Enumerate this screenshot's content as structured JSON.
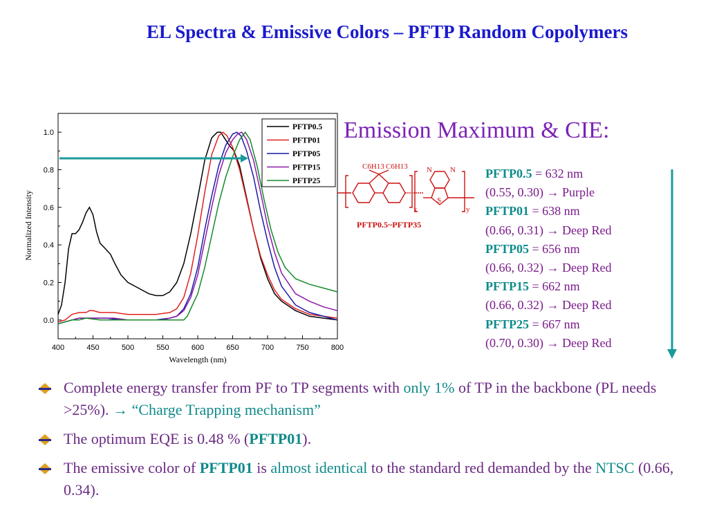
{
  "title": "EL Spectra & Emissive Colors – PFTP Random Copolymers",
  "emission_heading": "Emission Maximum & CIE:",
  "structure": {
    "label": "PFTP0.5~PFTP35",
    "substituents": [
      "C6H13",
      "C6H13"
    ],
    "atoms": [
      "N",
      "N",
      "S"
    ],
    "indices": [
      "x",
      "y"
    ]
  },
  "cie": [
    {
      "name": "PFTP0.5",
      "eq": " = 632 nm",
      "coords": "(0.55, 0.30) → Purple"
    },
    {
      "name": "PFTP01",
      "eq": " =  638 nm",
      "coords": "(0.66, 0.31) → Deep Red"
    },
    {
      "name": "PFTP05",
      "eq": " = 656 nm",
      "coords": "(0.66, 0.32) → Deep Red"
    },
    {
      "name": "PFTP15",
      "eq": " = 662 nm",
      "coords": "(0.66, 0.32) → Deep Red"
    },
    {
      "name": "PFTP25",
      "eq": " = 667 nm",
      "coords": "(0.70, 0.30) → Deep Red"
    }
  ],
  "bullets": {
    "b1": {
      "t1": "Complete energy transfer from PF to TP segments with ",
      "t2": "only 1%",
      "t3": " of TP in the backbone (PL needs >25%). ",
      "t4": "→ “Charge Trapping mechanism”"
    },
    "b2": {
      "t1": "The optimum EQE is 0.48 % (",
      "t2": "PFTP01",
      "t3": ")."
    },
    "b3": {
      "t1": "The emissive color of ",
      "t2": "PFTP01",
      "t3": " is ",
      "t4": "almost identical",
      "t5": " to the standard red demanded by the ",
      "t6": "NTSC",
      "t7": " (0.66, 0.34)."
    }
  },
  "chart_data": {
    "type": "line",
    "xlabel": "Wavelength (nm)",
    "ylabel": "Normalized Intensity",
    "xlim": [
      400,
      800
    ],
    "ylim": [
      -0.1,
      1.1
    ],
    "xticks": [
      400,
      450,
      500,
      550,
      600,
      650,
      700,
      750,
      800
    ],
    "yticks": [
      0.0,
      0.2,
      0.4,
      0.6,
      0.8,
      1.0
    ],
    "legend_position": "top-right",
    "grid": false,
    "series": [
      {
        "name": "PFTP0.5",
        "color": "#000000",
        "points": [
          [
            400,
            0.03
          ],
          [
            405,
            0.08
          ],
          [
            410,
            0.2
          ],
          [
            415,
            0.38
          ],
          [
            420,
            0.46
          ],
          [
            425,
            0.46
          ],
          [
            430,
            0.48
          ],
          [
            435,
            0.52
          ],
          [
            440,
            0.57
          ],
          [
            445,
            0.6
          ],
          [
            450,
            0.56
          ],
          [
            455,
            0.47
          ],
          [
            460,
            0.41
          ],
          [
            465,
            0.39
          ],
          [
            470,
            0.37
          ],
          [
            475,
            0.35
          ],
          [
            480,
            0.31
          ],
          [
            490,
            0.24
          ],
          [
            500,
            0.2
          ],
          [
            510,
            0.18
          ],
          [
            520,
            0.16
          ],
          [
            530,
            0.14
          ],
          [
            540,
            0.13
          ],
          [
            550,
            0.13
          ],
          [
            560,
            0.15
          ],
          [
            570,
            0.2
          ],
          [
            580,
            0.3
          ],
          [
            590,
            0.46
          ],
          [
            600,
            0.65
          ],
          [
            610,
            0.85
          ],
          [
            620,
            0.97
          ],
          [
            628,
            1.0
          ],
          [
            633,
            1.0
          ],
          [
            638,
            0.97
          ],
          [
            645,
            0.93
          ],
          [
            652,
            0.9
          ],
          [
            660,
            0.82
          ],
          [
            670,
            0.65
          ],
          [
            680,
            0.48
          ],
          [
            690,
            0.33
          ],
          [
            700,
            0.22
          ],
          [
            710,
            0.14
          ],
          [
            720,
            0.1
          ],
          [
            740,
            0.05
          ],
          [
            760,
            0.02
          ],
          [
            780,
            0.01
          ],
          [
            800,
            0.0
          ]
        ]
      },
      {
        "name": "PFTP01",
        "color": "#e02020",
        "points": [
          [
            400,
            -0.01
          ],
          [
            410,
            0.0
          ],
          [
            420,
            0.03
          ],
          [
            430,
            0.04
          ],
          [
            440,
            0.04
          ],
          [
            445,
            0.05
          ],
          [
            450,
            0.05
          ],
          [
            460,
            0.04
          ],
          [
            470,
            0.04
          ],
          [
            480,
            0.04
          ],
          [
            500,
            0.03
          ],
          [
            520,
            0.03
          ],
          [
            540,
            0.03
          ],
          [
            560,
            0.04
          ],
          [
            570,
            0.06
          ],
          [
            580,
            0.12
          ],
          [
            590,
            0.25
          ],
          [
            600,
            0.45
          ],
          [
            610,
            0.68
          ],
          [
            620,
            0.88
          ],
          [
            630,
            0.98
          ],
          [
            636,
            1.0
          ],
          [
            642,
            0.98
          ],
          [
            650,
            0.92
          ],
          [
            660,
            0.8
          ],
          [
            670,
            0.64
          ],
          [
            680,
            0.48
          ],
          [
            690,
            0.34
          ],
          [
            700,
            0.24
          ],
          [
            710,
            0.16
          ],
          [
            720,
            0.11
          ],
          [
            740,
            0.06
          ],
          [
            760,
            0.03
          ],
          [
            780,
            0.02
          ],
          [
            800,
            0.01
          ]
        ]
      },
      {
        "name": "PFTP05",
        "color": "#1a1aa8",
        "points": [
          [
            400,
            -0.02
          ],
          [
            420,
            0.0
          ],
          [
            430,
            0.01
          ],
          [
            440,
            0.01
          ],
          [
            450,
            0.01
          ],
          [
            470,
            0.01
          ],
          [
            490,
            0.0
          ],
          [
            510,
            0.0
          ],
          [
            540,
            0.0
          ],
          [
            560,
            0.01
          ],
          [
            570,
            0.02
          ],
          [
            580,
            0.06
          ],
          [
            590,
            0.14
          ],
          [
            600,
            0.28
          ],
          [
            610,
            0.48
          ],
          [
            620,
            0.66
          ],
          [
            630,
            0.82
          ],
          [
            640,
            0.93
          ],
          [
            650,
            0.99
          ],
          [
            656,
            1.0
          ],
          [
            662,
            0.98
          ],
          [
            670,
            0.9
          ],
          [
            680,
            0.76
          ],
          [
            690,
            0.58
          ],
          [
            700,
            0.42
          ],
          [
            710,
            0.28
          ],
          [
            720,
            0.18
          ],
          [
            740,
            0.08
          ],
          [
            760,
            0.04
          ],
          [
            780,
            0.02
          ],
          [
            800,
            0.0
          ]
        ]
      },
      {
        "name": "PFTP15",
        "color": "#8a1aa8",
        "points": [
          [
            400,
            -0.02
          ],
          [
            420,
            0.0
          ],
          [
            430,
            0.01
          ],
          [
            440,
            0.01
          ],
          [
            460,
            0.01
          ],
          [
            480,
            0.01
          ],
          [
            500,
            0.0
          ],
          [
            520,
            0.0
          ],
          [
            550,
            0.0
          ],
          [
            570,
            0.02
          ],
          [
            580,
            0.05
          ],
          [
            590,
            0.12
          ],
          [
            600,
            0.24
          ],
          [
            610,
            0.42
          ],
          [
            620,
            0.6
          ],
          [
            630,
            0.77
          ],
          [
            640,
            0.89
          ],
          [
            650,
            0.96
          ],
          [
            657,
            0.99
          ],
          [
            663,
            1.0
          ],
          [
            670,
            0.96
          ],
          [
            680,
            0.85
          ],
          [
            690,
            0.68
          ],
          [
            700,
            0.5
          ],
          [
            710,
            0.36
          ],
          [
            720,
            0.25
          ],
          [
            740,
            0.14
          ],
          [
            760,
            0.1
          ],
          [
            780,
            0.07
          ],
          [
            800,
            0.05
          ]
        ]
      },
      {
        "name": "PFTP25",
        "color": "#158a2a",
        "points": [
          [
            400,
            -0.02
          ],
          [
            420,
            0.0
          ],
          [
            430,
            0.0
          ],
          [
            440,
            0.01
          ],
          [
            460,
            0.0
          ],
          [
            480,
            0.0
          ],
          [
            500,
            0.0
          ],
          [
            540,
            0.0
          ],
          [
            570,
            0.0
          ],
          [
            580,
            0.0
          ],
          [
            585,
            0.02
          ],
          [
            590,
            0.06
          ],
          [
            600,
            0.14
          ],
          [
            610,
            0.28
          ],
          [
            620,
            0.45
          ],
          [
            630,
            0.62
          ],
          [
            640,
            0.76
          ],
          [
            650,
            0.87
          ],
          [
            660,
            0.96
          ],
          [
            668,
            1.0
          ],
          [
            675,
            0.96
          ],
          [
            685,
            0.82
          ],
          [
            695,
            0.64
          ],
          [
            705,
            0.48
          ],
          [
            715,
            0.36
          ],
          [
            725,
            0.28
          ],
          [
            740,
            0.22
          ],
          [
            760,
            0.19
          ],
          [
            780,
            0.17
          ],
          [
            800,
            0.15
          ]
        ]
      }
    ]
  }
}
